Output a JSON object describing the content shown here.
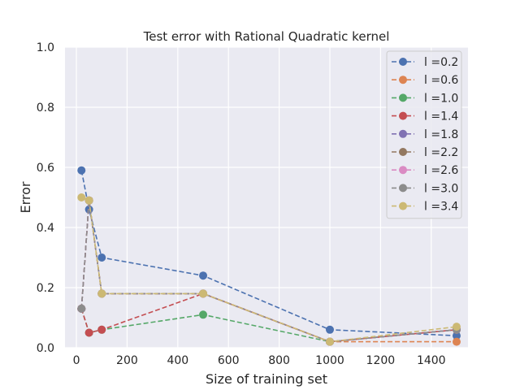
{
  "chart_data": {
    "type": "line",
    "title": "Test error with Rational Quadratic kernel",
    "xlabel": "Size of training set",
    "ylabel": "Error",
    "xlim": [
      -45,
      1545
    ],
    "ylim": [
      0,
      1.0
    ],
    "xticks": [
      0,
      200,
      400,
      600,
      800,
      1000,
      1200,
      1400
    ],
    "yticks": [
      0.0,
      0.2,
      0.4,
      0.6,
      0.8,
      1.0
    ],
    "grid": true,
    "legend_position": "top-right",
    "x": [
      20,
      50,
      100,
      500,
      1000,
      1500
    ],
    "series": [
      {
        "name": "l =0.2",
        "color": "#4c72b0",
        "values": [
          0.59,
          0.46,
          0.3,
          0.24,
          0.06,
          0.04
        ]
      },
      {
        "name": "l =0.6",
        "color": "#dd8452",
        "values": [
          0.13,
          0.49,
          0.18,
          0.18,
          0.02,
          0.02
        ]
      },
      {
        "name": "l =1.0",
        "color": "#55a868",
        "values": [
          0.13,
          0.05,
          0.06,
          0.11,
          0.02,
          0.06
        ]
      },
      {
        "name": "l =1.4",
        "color": "#c44e52",
        "values": [
          0.13,
          0.05,
          0.06,
          0.18,
          0.02,
          0.06
        ]
      },
      {
        "name": "l =1.8",
        "color": "#8172b3",
        "values": [
          0.13,
          0.49,
          0.18,
          0.18,
          0.02,
          0.06
        ]
      },
      {
        "name": "l =2.2",
        "color": "#937860",
        "values": [
          0.13,
          0.49,
          0.18,
          0.18,
          0.02,
          0.06
        ]
      },
      {
        "name": "l =2.6",
        "color": "#da8bc3",
        "values": [
          0.13,
          0.49,
          0.18,
          0.18,
          0.02,
          0.06
        ]
      },
      {
        "name": "l =3.0",
        "color": "#8c8c8c",
        "values": [
          0.13,
          0.49,
          0.18,
          0.18,
          0.02,
          0.06
        ]
      },
      {
        "name": "l =3.4",
        "color": "#ccb974",
        "values": [
          0.5,
          0.49,
          0.18,
          0.18,
          0.02,
          0.07
        ]
      }
    ]
  }
}
